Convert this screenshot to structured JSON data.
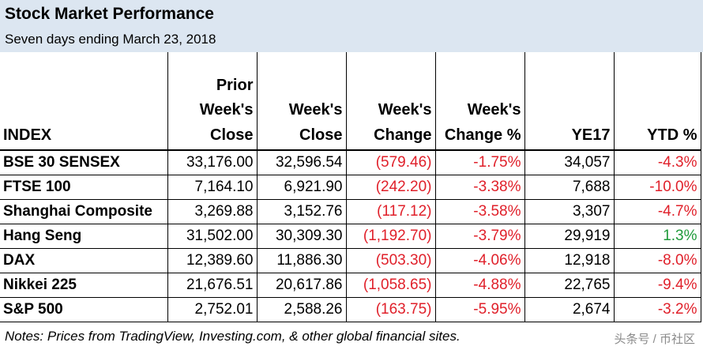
{
  "title": "Stock Market Performance",
  "subtitle": "Seven days ending March 23, 2018",
  "headers": {
    "index": [
      "INDEX"
    ],
    "prior": [
      "Prior",
      "Week's",
      "Close"
    ],
    "close": [
      "Week's",
      "Close"
    ],
    "change": [
      "Week's",
      "Change"
    ],
    "change_pct": [
      "Week's",
      "Change %"
    ],
    "ye17": [
      "YE17"
    ],
    "ytd": [
      "YTD %"
    ]
  },
  "rows": [
    {
      "index": "BSE 30 SENSEX",
      "prior": "33,176.00",
      "close": "32,596.54",
      "change": "(579.46)",
      "change_pct": "-1.75%",
      "ye17": "34,057",
      "ytd": "-4.3%"
    },
    {
      "index": "FTSE 100",
      "prior": "7,164.10",
      "close": "6,921.90",
      "change": "(242.20)",
      "change_pct": "-3.38%",
      "ye17": "7,688",
      "ytd": "-10.0%"
    },
    {
      "index": "Shanghai Composite",
      "prior": "3,269.88",
      "close": "3,152.76",
      "change": "(117.12)",
      "change_pct": "-3.58%",
      "ye17": "3,307",
      "ytd": "-4.7%"
    },
    {
      "index": "Hang Seng",
      "prior": "31,502.00",
      "close": "30,309.30",
      "change": "(1,192.70)",
      "change_pct": "-3.79%",
      "ye17": "29,919",
      "ytd": "1.3%"
    },
    {
      "index": "DAX",
      "prior": "12,389.60",
      "close": "11,886.30",
      "change": "(503.30)",
      "change_pct": "-4.06%",
      "ye17": "12,918",
      "ytd": "-8.0%"
    },
    {
      "index": "Nikkei 225",
      "prior": "21,676.51",
      "close": "20,617.86",
      "change": "(1,058.65)",
      "change_pct": "-4.88%",
      "ye17": "22,765",
      "ytd": "-9.4%"
    },
    {
      "index": "S&P 500",
      "prior": "2,752.01",
      "close": "2,588.26",
      "change": "(163.75)",
      "change_pct": "-5.95%",
      "ye17": "2,674",
      "ytd": "-3.2%"
    }
  ],
  "notes": "Notes: Prices from TradingView, Investing.com, & other global financial sites.",
  "watermark": "头条号 / 币社区",
  "colors": {
    "title_band": "#dce6f1",
    "negative": "#e0202a",
    "positive": "#1f9a3a"
  }
}
